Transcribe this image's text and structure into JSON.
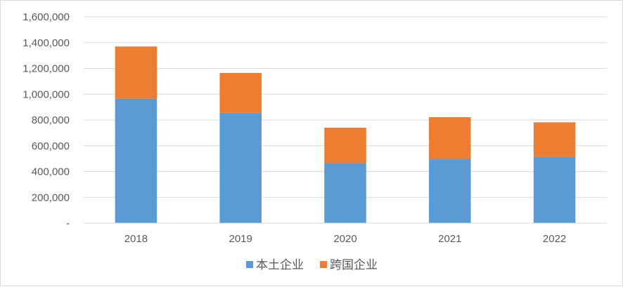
{
  "chart_data": {
    "type": "bar",
    "stacked": true,
    "categories": [
      "2018",
      "2019",
      "2020",
      "2021",
      "2022"
    ],
    "series": [
      {
        "name": "本土企业",
        "color": "#5b9bd5",
        "values": [
          965000,
          855000,
          465000,
          500000,
          512000
        ]
      },
      {
        "name": "跨国企业",
        "color": "#ed7d31",
        "values": [
          405000,
          310000,
          275000,
          322000,
          270000
        ]
      }
    ],
    "ylim": [
      0,
      1600000
    ],
    "yticks": [
      0,
      200000,
      400000,
      600000,
      800000,
      1000000,
      1200000,
      1400000,
      1600000
    ],
    "ytick_labels": [
      "-",
      "200,000",
      "400,000",
      "600,000",
      "800,000",
      "1,000,000",
      "1,200,000",
      "1,400,000",
      "1,600,000"
    ],
    "grid": true,
    "legend": "bottom",
    "gridline_color": "#d9d9d9",
    "title": "",
    "xlabel": "",
    "ylabel": ""
  }
}
